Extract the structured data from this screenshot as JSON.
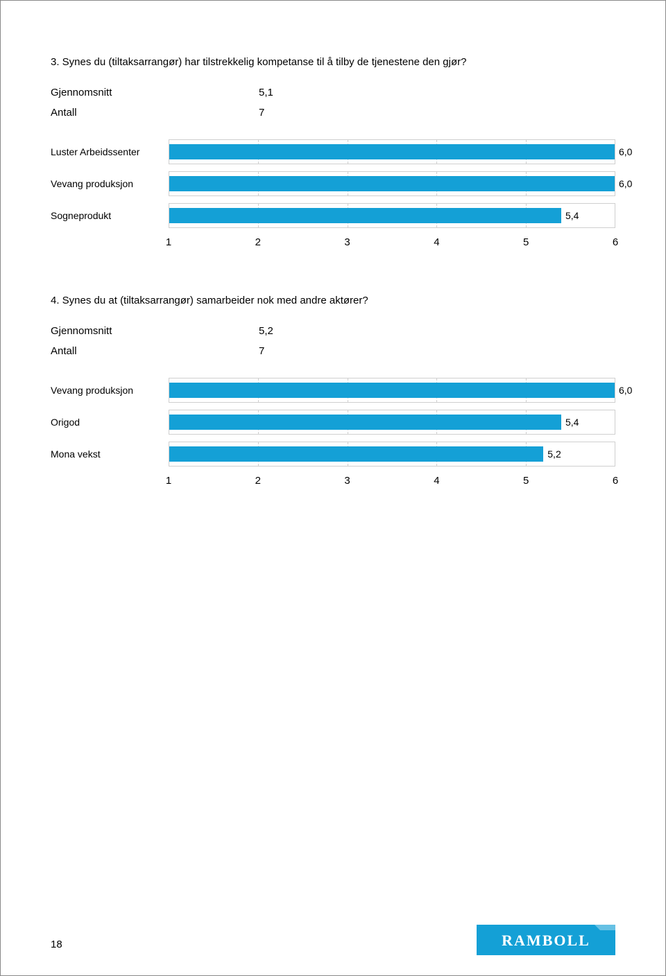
{
  "page_number": "18",
  "logo_text": "RAMBOLL",
  "logo_bg": "#14a0d6",
  "logo_text_color": "#ffffff",
  "sections": [
    {
      "question": "3. Synes du (tiltaksarrangør) har tilstrekkelig kompetanse til å tilby de tjenestene den gjør?",
      "stats": [
        {
          "label": "Gjennomsnitt",
          "value": "5,1"
        },
        {
          "label": "Antall",
          "value": "7"
        }
      ],
      "chart": {
        "type": "bar",
        "xmin": 1,
        "xmax": 6,
        "ticks": [
          1,
          2,
          3,
          4,
          5,
          6
        ],
        "bar_color": "#14a0d6",
        "grid_color": "#cfcfcf",
        "background_color": "#ffffff",
        "label_fontsize": 14,
        "tick_fontsize": 15,
        "bars": [
          {
            "label": "Luster Arbeidssenter",
            "value": 6.0,
            "display": "6,0"
          },
          {
            "label": "Vevang produksjon",
            "value": 6.0,
            "display": "6,0"
          },
          {
            "label": "Sogneprodukt",
            "value": 5.4,
            "display": "5,4"
          }
        ]
      }
    },
    {
      "question": "4. Synes du at (tiltaksarrangør) samarbeider nok med andre aktører?",
      "stats": [
        {
          "label": "Gjennomsnitt",
          "value": "5,2"
        },
        {
          "label": "Antall",
          "value": "7"
        }
      ],
      "chart": {
        "type": "bar",
        "xmin": 1,
        "xmax": 6,
        "ticks": [
          1,
          2,
          3,
          4,
          5,
          6
        ],
        "bar_color": "#14a0d6",
        "grid_color": "#cfcfcf",
        "background_color": "#ffffff",
        "label_fontsize": 14,
        "tick_fontsize": 15,
        "bars": [
          {
            "label": "Vevang produksjon",
            "value": 6.0,
            "display": "6,0"
          },
          {
            "label": "Origod",
            "value": 5.4,
            "display": "5,4"
          },
          {
            "label": "Mona vekst",
            "value": 5.2,
            "display": "5,2"
          }
        ]
      }
    }
  ]
}
